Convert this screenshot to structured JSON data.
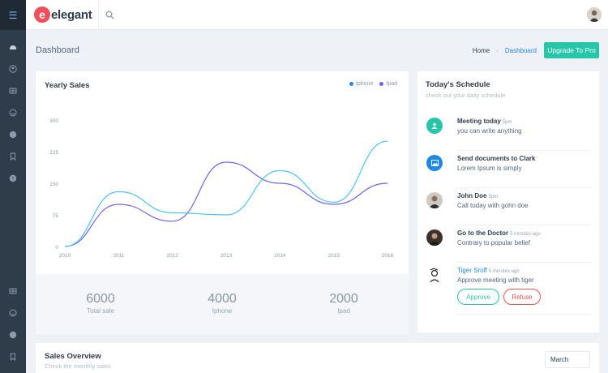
{
  "app": {
    "logo_letter": "e",
    "logo_text": "elegant"
  },
  "colors": {
    "accent": "#26c6a8",
    "iphone": "#4fc3f7",
    "ipad": "#7460ee",
    "sidebar": "#2f3d4a",
    "brand": "#ef4e5a",
    "link": "#1e88e5",
    "danger": "#ef5350"
  },
  "header": {
    "page_title": "Dashboard",
    "breadcrumb": [
      {
        "label": "Home"
      },
      {
        "label": "Dashboard"
      }
    ],
    "upgrade_label": "Upgrade To Pro"
  },
  "sales": {
    "title": "Yearly Sales",
    "legend": [
      {
        "label": "Iphone",
        "color": "#4fc3f7"
      },
      {
        "label": "Ipad",
        "color": "#7460ee"
      }
    ],
    "stats": [
      {
        "value": "6000",
        "label": "Total sale"
      },
      {
        "value": "4000",
        "label": "Iphone"
      },
      {
        "value": "2000",
        "label": "Ipad"
      }
    ]
  },
  "chart_data": {
    "type": "line",
    "title": "Yearly Sales",
    "x": [
      "2010",
      "2011",
      "2012",
      "2013",
      "2014",
      "2015",
      "2016"
    ],
    "yticks": [
      "0",
      "75",
      "150",
      "225",
      "300"
    ],
    "ylim": [
      0,
      300
    ],
    "grid": false,
    "legend_position": "top-right",
    "series": [
      {
        "name": "Iphone",
        "color": "#4fc3f7",
        "values": [
          0,
          130,
          80,
          75,
          180,
          105,
          250
        ]
      },
      {
        "name": "Ipad",
        "color": "#7460ee",
        "values": [
          0,
          100,
          60,
          200,
          150,
          100,
          150
        ]
      }
    ]
  },
  "schedule": {
    "title": "Today's Schedule",
    "subtitle": "check out your daily schedule",
    "items": [
      {
        "title": "Meeting today",
        "time": "5pm",
        "desc": "you can write anything",
        "avatar": "user-icon",
        "color": "#26c6a8"
      },
      {
        "title": "Send documents to Clark",
        "time": "",
        "desc": "Lorem Ipsum is simply",
        "avatar": "image-icon",
        "color": "#1e88e5"
      },
      {
        "title": "John Doe",
        "time": "5pm",
        "desc": "Call today with gohn doe",
        "avatar": "photo",
        "color": "#c9c2bb"
      },
      {
        "title": "Go to the Doctor",
        "time": "5 minutes ago",
        "desc": "Contrary to popular belief",
        "avatar": "photo",
        "color": "#4a3b35"
      },
      {
        "title": "Tiger Sroff",
        "time": "5 minutes ago",
        "desc": "Approve meeting with tiger",
        "avatar": "photo",
        "color": "#ffffff"
      }
    ],
    "approve_label": "Approve",
    "refuse_label": "Refuse"
  },
  "overview": {
    "title": "Sales Overview",
    "subtitle": "Check the monthly sales",
    "month": "March"
  }
}
